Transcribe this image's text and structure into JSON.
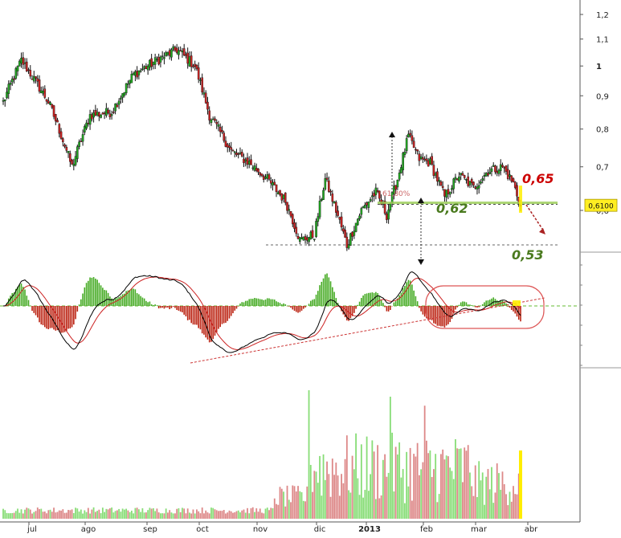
{
  "chart_data": {
    "type": "candlestick",
    "x_axis": {
      "month_labels": [
        "jul",
        "ago",
        "sep",
        "oct",
        "nov",
        "dic",
        "2013",
        "feb",
        "mar",
        "abr"
      ]
    },
    "y_axis": {
      "scale": "log",
      "ticks": [
        {
          "value": 1.2,
          "label": "1,2"
        },
        {
          "value": 1.1,
          "label": "1,1"
        },
        {
          "value": 1.0,
          "label": "1"
        },
        {
          "value": 0.9,
          "label": "0,9"
        },
        {
          "value": 0.8,
          "label": "0,8"
        },
        {
          "value": 0.7,
          "label": "0,7"
        },
        {
          "value": 0.6,
          "label": "0,6"
        }
      ]
    },
    "price_anchors": [
      [
        0,
        0.88
      ],
      [
        10,
        1.02
      ],
      [
        25,
        0.88
      ],
      [
        38,
        0.7
      ],
      [
        48,
        0.84
      ],
      [
        60,
        0.85
      ],
      [
        72,
        0.97
      ],
      [
        85,
        1.02
      ],
      [
        96,
        1.06
      ],
      [
        106,
        1.0
      ],
      [
        114,
        0.84
      ],
      [
        126,
        0.74
      ],
      [
        136,
        0.71
      ],
      [
        146,
        0.67
      ],
      [
        156,
        0.62
      ],
      [
        164,
        0.54
      ],
      [
        172,
        0.55
      ],
      [
        178,
        0.67
      ],
      [
        184,
        0.6
      ],
      [
        190,
        0.53
      ],
      [
        198,
        0.6
      ],
      [
        206,
        0.64
      ],
      [
        212,
        0.59
      ],
      [
        218,
        0.67
      ],
      [
        224,
        0.78
      ],
      [
        230,
        0.72
      ],
      [
        236,
        0.71
      ],
      [
        244,
        0.63
      ],
      [
        252,
        0.68
      ],
      [
        260,
        0.65
      ],
      [
        268,
        0.69
      ],
      [
        276,
        0.7
      ],
      [
        282,
        0.66
      ],
      [
        286,
        0.61
      ]
    ],
    "total_days": 287,
    "last_price": {
      "value": 0.61,
      "label": "0,6100"
    },
    "levels": [
      {
        "value": 0.62,
        "label": "0,62",
        "color": "#4a7a1e"
      },
      {
        "value": 0.53,
        "label": "0,53",
        "color": "#4a7a1e"
      },
      {
        "value": 0.65,
        "label": "0,65",
        "color": "#cc0000"
      }
    ],
    "fib_label": "61,80%",
    "colors": {
      "up": "#22aa22",
      "down": "#cc2222",
      "volume_up": "#88dd77",
      "volume_down": "#dd8888",
      "highlight": "#ffee00"
    },
    "macd": {
      "signal_line_color": "#cc2222",
      "macd_line_color": "#000000",
      "hist_positive": "#44aa22",
      "hist_negative": "#bb2211"
    },
    "volume": {
      "label": ""
    }
  }
}
